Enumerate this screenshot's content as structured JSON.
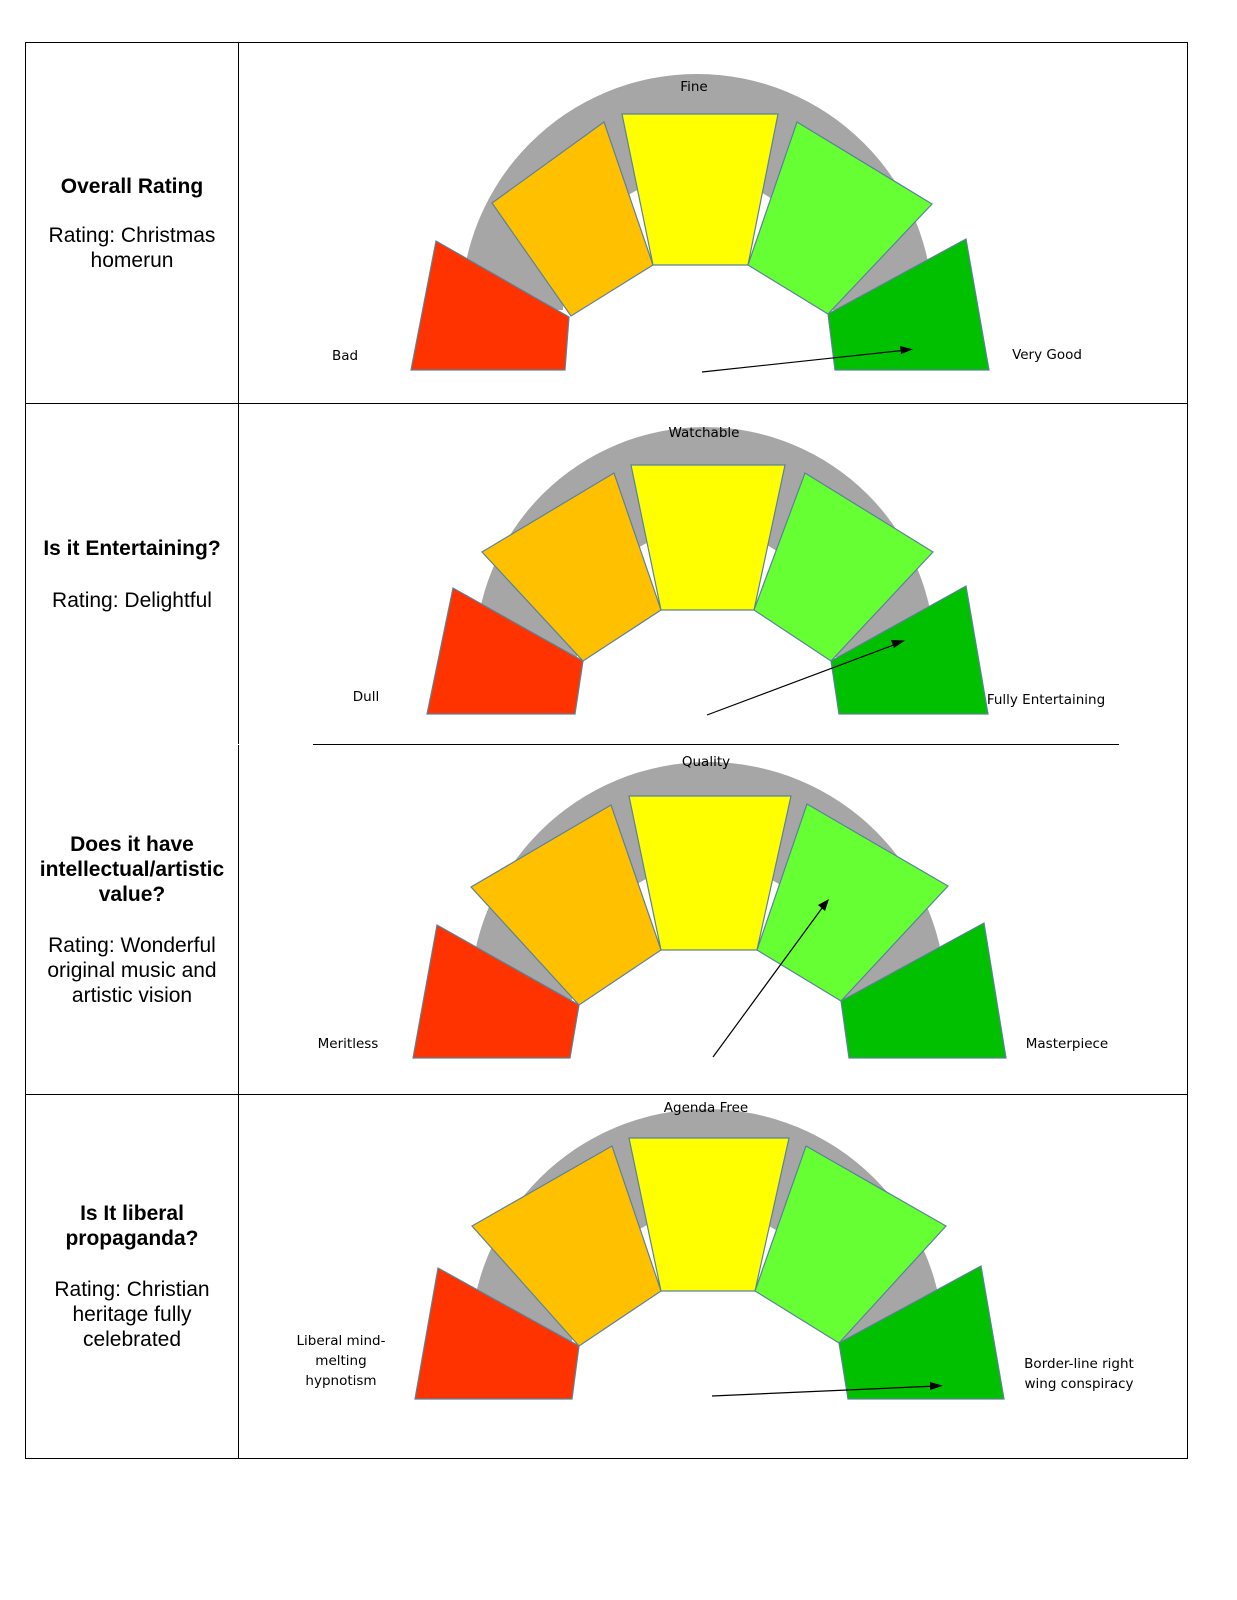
{
  "rows": [
    {
      "question": "Overall Rating",
      "rating": "Rating: Christmas homerun",
      "gauge": {
        "low_label": "Bad",
        "mid_label": "Fine",
        "high_label": "Very Good",
        "pointer_segment": 5
      }
    },
    {
      "question": "Is it Entertaining?",
      "rating": "Rating: Delightful",
      "gauge": {
        "low_label": "Dull",
        "mid_label": "Watchable",
        "high_label": "Fully Entertaining",
        "pointer_segment": 5
      }
    },
    {
      "question": "Does it have intellectual/artistic value?",
      "rating": "Rating:  Wonderful original music and artistic vision",
      "gauge": {
        "low_label": "Meritless",
        "mid_label": "Quality",
        "high_label": "Masterpiece",
        "pointer_segment": 4
      }
    },
    {
      "question": "Is It liberal propaganda?",
      "rating": "Rating: Christian heritage fully celebrated",
      "gauge": {
        "low_label": "Liberal mind-melting hypnotism",
        "mid_label": "Agenda Free",
        "high_label": "Border-line right wing conspiracy",
        "pointer_segment": 5
      }
    }
  ],
  "segment_colors": [
    "#ff3300",
    "#ffc000",
    "#ffff00",
    "#66ff33",
    "#00c000"
  ],
  "arc_color": "#a6a6a6",
  "segment_stroke": "#5b8299"
}
